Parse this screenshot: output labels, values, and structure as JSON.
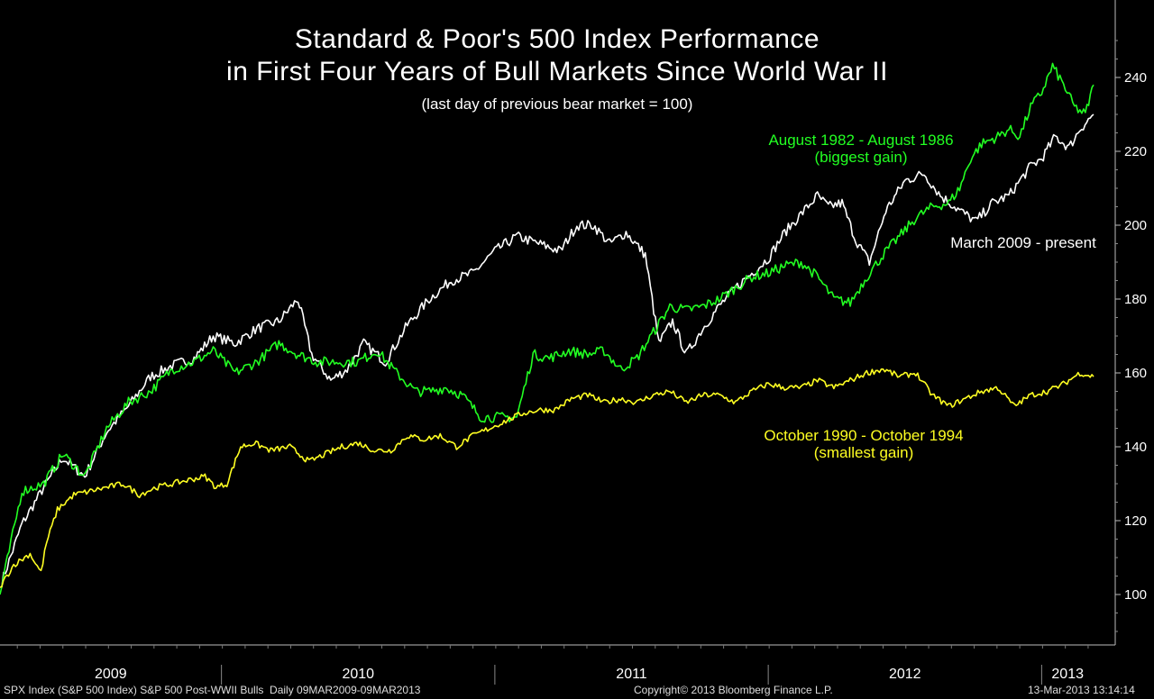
{
  "chart_data": {
    "type": "line",
    "title": "Standard & Poor's 500 Index Performance",
    "title_line2": "in First Four Years of Bull Markets Since World War II",
    "subtitle": "(last day of previous bear market = 100)",
    "xlabel": "",
    "ylabel": "",
    "x_ticks": [
      "2009",
      "2010",
      "2011",
      "2012",
      "2013"
    ],
    "y_ticks": [
      100,
      120,
      140,
      160,
      180,
      200,
      220,
      240
    ],
    "ylim": [
      86,
      252
    ],
    "xlim_years": [
      2009.19,
      2013.19
    ],
    "grid": false,
    "y_axis_side": "right",
    "series": [
      {
        "name": "March 2009 - present",
        "color": "#ffffff",
        "x": [
          2009.19,
          2009.27,
          2009.35,
          2009.42,
          2009.5,
          2009.58,
          2009.66,
          2009.74,
          2009.82,
          2009.9,
          2009.97,
          2010.05,
          2010.13,
          2010.21,
          2010.28,
          2010.33,
          2010.4,
          2010.46,
          2010.52,
          2010.6,
          2010.68,
          2010.76,
          2010.84,
          2010.92,
          2011.0,
          2011.08,
          2011.16,
          2011.24,
          2011.3,
          2011.36,
          2011.42,
          2011.48,
          2011.55,
          2011.6,
          2011.65,
          2011.7,
          2011.76,
          2011.82,
          2011.88,
          2011.94,
          2012.0,
          2012.06,
          2012.12,
          2012.18,
          2012.22,
          2012.27,
          2012.32,
          2012.37,
          2012.43,
          2012.5,
          2012.57,
          2012.63,
          2012.7,
          2012.76,
          2012.82,
          2012.88,
          2012.92,
          2012.96,
          2013.0,
          2013.05,
          2013.1,
          2013.14,
          2013.19
        ],
        "values": [
          102,
          119,
          129,
          137,
          132,
          144,
          151,
          159,
          162,
          164,
          170,
          168,
          172,
          174,
          180,
          165,
          158,
          161,
          168,
          163,
          173,
          180,
          185,
          187,
          193,
          197,
          195,
          193,
          200,
          200,
          195,
          198,
          192,
          168,
          174,
          165,
          172,
          178,
          183,
          187,
          191,
          198,
          203,
          208,
          205,
          206,
          196,
          190,
          204,
          212,
          214,
          208,
          204,
          201,
          206,
          208,
          212,
          216,
          218,
          224,
          221,
          226,
          230
        ]
      },
      {
        "name": "August 1982 - August 1986",
        "color": "#22ff22",
        "x": [
          2009.19,
          2009.27,
          2009.35,
          2009.42,
          2009.5,
          2009.58,
          2009.66,
          2009.74,
          2009.82,
          2009.9,
          2009.97,
          2010.05,
          2010.13,
          2010.21,
          2010.28,
          2010.35,
          2010.42,
          2010.5,
          2010.57,
          2010.64,
          2010.71,
          2010.76,
          2010.82,
          2010.88,
          2010.95,
          2011.02,
          2011.08,
          2011.14,
          2011.2,
          2011.27,
          2011.34,
          2011.4,
          2011.46,
          2011.52,
          2011.58,
          2011.64,
          2011.7,
          2011.76,
          2011.82,
          2011.88,
          2011.94,
          2012.0,
          2012.06,
          2012.12,
          2012.18,
          2012.24,
          2012.3,
          2012.36,
          2012.42,
          2012.48,
          2012.54,
          2012.6,
          2012.66,
          2012.7,
          2012.74,
          2012.78,
          2012.84,
          2012.88,
          2012.92,
          2012.96,
          2013.0,
          2013.04,
          2013.08,
          2013.12,
          2013.16,
          2013.19
        ],
        "values": [
          100,
          128,
          130,
          138,
          132,
          145,
          152,
          155,
          161,
          163,
          166,
          160,
          163,
          168,
          165,
          163,
          163,
          163,
          166,
          160,
          155,
          155,
          156,
          154,
          148,
          148,
          148,
          165,
          164,
          166,
          165,
          166,
          161,
          164,
          171,
          178,
          177,
          178,
          180,
          183,
          186,
          187,
          189,
          190,
          186,
          180,
          179,
          186,
          192,
          197,
          202,
          205,
          206,
          210,
          218,
          222,
          224,
          226,
          224,
          232,
          236,
          243,
          238,
          232,
          230,
          238
        ]
      },
      {
        "name": "October 1990 - October 1994",
        "color": "#ffff22",
        "x": [
          2009.19,
          2009.24,
          2009.3,
          2009.34,
          2009.36,
          2009.4,
          2009.46,
          2009.52,
          2009.58,
          2009.64,
          2009.7,
          2009.76,
          2009.82,
          2009.88,
          2009.94,
          2009.98,
          2010.02,
          2010.07,
          2010.12,
          2010.18,
          2010.25,
          2010.32,
          2010.38,
          2010.44,
          2010.5,
          2010.56,
          2010.62,
          2010.68,
          2010.74,
          2010.8,
          2010.86,
          2010.92,
          2010.98,
          2011.04,
          2011.1,
          2011.16,
          2011.22,
          2011.28,
          2011.34,
          2011.4,
          2011.46,
          2011.52,
          2011.58,
          2011.64,
          2011.7,
          2011.76,
          2011.82,
          2011.88,
          2011.94,
          2012.0,
          2012.06,
          2012.12,
          2012.18,
          2012.24,
          2012.3,
          2012.36,
          2012.42,
          2012.48,
          2012.54,
          2012.6,
          2012.66,
          2012.72,
          2012.78,
          2012.84,
          2012.9,
          2012.96,
          2013.02,
          2013.08,
          2013.14,
          2013.19
        ],
        "values": [
          102,
          108,
          111,
          106,
          114,
          123,
          127,
          128,
          129,
          130,
          127,
          129,
          130,
          131,
          132,
          129,
          130,
          140,
          141,
          139,
          140,
          136,
          138,
          140,
          141,
          139,
          139,
          143,
          142,
          143,
          140,
          143,
          145,
          147,
          149,
          150,
          150,
          153,
          154,
          152,
          153,
          152,
          154,
          155,
          152,
          154,
          154,
          152,
          155,
          157,
          156,
          156,
          158,
          156,
          158,
          160,
          161,
          159,
          160,
          154,
          151,
          153,
          155,
          156,
          151,
          154,
          155,
          157,
          160,
          159
        ]
      }
    ],
    "annotations": {
      "green_label": "August 1982 - August 1986",
      "green_sub": "(biggest gain)",
      "white_label": "March 2009 - present",
      "yellow_label": "October 1990 - October 1994",
      "yellow_sub": "(smallest gain)"
    }
  },
  "footer": {
    "left": "SPX Index (S&P 500 Index) S&P 500 Post-WWII Bulls  Daily 09MAR2009-09MAR2013",
    "center": "Copyright© 2013 Bloomberg Finance L.P.",
    "right": "13-Mar-2013 13:14:14"
  },
  "colors": {
    "background": "#000000",
    "white_series": "#ffffff",
    "green_series": "#22ff22",
    "yellow_series": "#ffff22",
    "axis": "#bbbbbb"
  }
}
